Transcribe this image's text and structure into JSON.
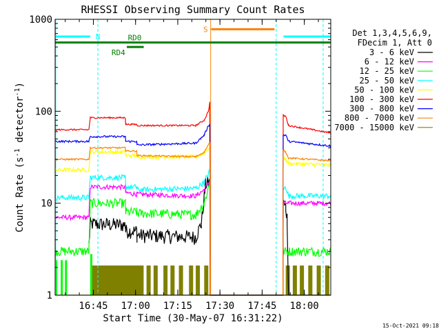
{
  "chart_data": {
    "type": "line",
    "title": "RHESSI Observing Summary Count Rates",
    "xlabel": "Start Time (30-May-07 16:31:22)",
    "ylabel_parts": {
      "pre": "Count Rate (s",
      "sup1": "-1",
      "mid": " detector",
      "sup2": "-1",
      "post": ")"
    },
    "timestamp": "15-Oct-2021 09:18",
    "x_units": "minutes since 16:31:22",
    "xlim": [
      0,
      98
    ],
    "ylim": [
      1,
      1000
    ],
    "y_scale": "log",
    "x_ticks": [
      {
        "value": 13.6,
        "label": "16:45"
      },
      {
        "value": 28.6,
        "label": "17:00"
      },
      {
        "value": 43.6,
        "label": "17:15"
      },
      {
        "value": 58.6,
        "label": "17:30"
      },
      {
        "value": 73.6,
        "label": "17:45"
      },
      {
        "value": 88.6,
        "label": "18:00"
      }
    ],
    "y_ticks": [
      {
        "value": 1,
        "label": "1"
      },
      {
        "value": 10,
        "label": "10"
      },
      {
        "value": 100,
        "label": "100"
      },
      {
        "value": 1000,
        "label": "1000"
      }
    ],
    "legend_header": [
      "Det 1,3,4,5,6,9,",
      "FDecim 1, Att 0"
    ],
    "series": [
      {
        "name": "3 - 6 keV",
        "color": "#000000",
        "noise": 0.18,
        "points": [
          [
            12,
            3.5
          ],
          [
            12.5,
            6
          ],
          [
            25,
            5.8
          ],
          [
            25.1,
            5
          ],
          [
            29,
            5
          ],
          [
            29.1,
            4.5
          ],
          [
            50,
            4.3
          ],
          [
            52,
            6
          ],
          [
            53.5,
            16
          ],
          [
            55,
            17
          ],
          [
            55.1,
            1
          ],
          [
            81,
            1
          ],
          [
            81.1,
            10
          ],
          [
            82,
            9
          ],
          [
            82.5,
            7
          ],
          [
            83,
            1
          ],
          [
            98,
            1
          ]
        ]
      },
      {
        "name": "6 - 12 keV",
        "color": "#ff00ff",
        "noise": 0.06,
        "points": [
          [
            0,
            7
          ],
          [
            12,
            7
          ],
          [
            12.5,
            15
          ],
          [
            25,
            15
          ],
          [
            25.1,
            13
          ],
          [
            29,
            12.5
          ],
          [
            29.1,
            12.5
          ],
          [
            50,
            12
          ],
          [
            53,
            14
          ],
          [
            54.8,
            17
          ],
          [
            55,
            17
          ],
          [
            55.1,
            1
          ],
          [
            81,
            1
          ],
          [
            81.1,
            10
          ],
          [
            98,
            10
          ]
        ]
      },
      {
        "name": "12 - 25 keV",
        "color": "#00ff00",
        "noise": 0.12,
        "points": [
          [
            0,
            3
          ],
          [
            12,
            3
          ],
          [
            12.5,
            10
          ],
          [
            25,
            10
          ],
          [
            25.1,
            8
          ],
          [
            29,
            8
          ],
          [
            29.1,
            7.8
          ],
          [
            50,
            7.5
          ],
          [
            53,
            10
          ],
          [
            54.8,
            16
          ],
          [
            55,
            16
          ],
          [
            55.1,
            1
          ],
          [
            81,
            1
          ],
          [
            81.1,
            3
          ],
          [
            98,
            3
          ]
        ]
      },
      {
        "name": "25 - 50 keV",
        "color": "#00ffff",
        "noise": 0.07,
        "points": [
          [
            0,
            11.5
          ],
          [
            12,
            11.5
          ],
          [
            12.5,
            19
          ],
          [
            25,
            19
          ],
          [
            25.1,
            15
          ],
          [
            29,
            15
          ],
          [
            29.1,
            14
          ],
          [
            50,
            14.5
          ],
          [
            53,
            17
          ],
          [
            54.8,
            22
          ],
          [
            55,
            22
          ],
          [
            55.1,
            1
          ],
          [
            81,
            1
          ],
          [
            81.1,
            14
          ],
          [
            82,
            15
          ],
          [
            83,
            12
          ],
          [
            98,
            12
          ]
        ]
      },
      {
        "name": "50 - 100 keV",
        "color": "#ffff00",
        "noise": 0.05,
        "points": [
          [
            0,
            23
          ],
          [
            12,
            23
          ],
          [
            12.5,
            36
          ],
          [
            25,
            36
          ],
          [
            25.1,
            33
          ],
          [
            29,
            33
          ],
          [
            29.1,
            32
          ],
          [
            50,
            32
          ],
          [
            53,
            35
          ],
          [
            54.8,
            40
          ],
          [
            55,
            40
          ],
          [
            55.1,
            1
          ],
          [
            81,
            1
          ],
          [
            81.1,
            30
          ],
          [
            82,
            30
          ],
          [
            83,
            27
          ],
          [
            98,
            26
          ]
        ]
      },
      {
        "name": "100 - 300 keV",
        "color": "#ff0000",
        "noise": 0.02,
        "points": [
          [
            0,
            63
          ],
          [
            12,
            63
          ],
          [
            12.5,
            85
          ],
          [
            25,
            85
          ],
          [
            25.1,
            72
          ],
          [
            29,
            72
          ],
          [
            29.1,
            70
          ],
          [
            50,
            70
          ],
          [
            53,
            80
          ],
          [
            54.5,
            100
          ],
          [
            55,
            125
          ],
          [
            55.1,
            1
          ],
          [
            81,
            1
          ],
          [
            81.1,
            90
          ],
          [
            82,
            88
          ],
          [
            83,
            70
          ],
          [
            98,
            58
          ]
        ]
      },
      {
        "name": "300 - 800 keV",
        "color": "#0000ff",
        "noise": 0.025,
        "points": [
          [
            0,
            47
          ],
          [
            12,
            47
          ],
          [
            12.5,
            53
          ],
          [
            25,
            53
          ],
          [
            25.1,
            47
          ],
          [
            29,
            47
          ],
          [
            29.1,
            43
          ],
          [
            50,
            45
          ],
          [
            53,
            55
          ],
          [
            54.5,
            70
          ],
          [
            55,
            72
          ],
          [
            55.1,
            1
          ],
          [
            81,
            1
          ],
          [
            81.1,
            55
          ],
          [
            82,
            55
          ],
          [
            83,
            47
          ],
          [
            98,
            42
          ]
        ]
      },
      {
        "name": "800 - 7000 keV",
        "color": "#ff8000",
        "noise": 0.02,
        "points": [
          [
            0,
            30
          ],
          [
            12,
            30
          ],
          [
            12.5,
            40
          ],
          [
            25,
            40
          ],
          [
            25.1,
            37
          ],
          [
            29,
            37
          ],
          [
            29.1,
            33
          ],
          [
            50,
            32
          ],
          [
            53,
            36
          ],
          [
            54.8,
            45
          ],
          [
            55,
            45
          ],
          [
            55.1,
            1
          ],
          [
            81,
            1
          ],
          [
            81.1,
            38
          ],
          [
            82,
            36
          ],
          [
            83,
            31
          ],
          [
            98,
            29
          ]
        ]
      },
      {
        "name": "7000 - 15000 keV",
        "color": "#808000",
        "noise": 0,
        "points": [
          [
            0,
            1
          ],
          [
            98,
            1
          ]
        ]
      }
    ],
    "green_spikes": [
      [
        0,
        2.4
      ],
      [
        2,
        2.4
      ],
      [
        3.5,
        2.4
      ],
      [
        12.5,
        2.8
      ]
    ],
    "olive_bursts": [
      [
        12.5,
        2.1
      ],
      [
        13.2,
        2.1
      ],
      [
        14.0,
        2.1
      ],
      [
        14.9,
        2.1
      ],
      [
        15.7,
        2.1
      ],
      [
        16.5,
        2.1
      ],
      [
        17.3,
        2.1
      ],
      [
        18.1,
        2.1
      ],
      [
        19.0,
        2.1
      ],
      [
        19.8,
        2.1
      ],
      [
        20.6,
        2.1
      ],
      [
        21.4,
        2.1
      ],
      [
        22.2,
        2.1
      ],
      [
        23.1,
        2.1
      ],
      [
        24,
        2.1
      ],
      [
        24.9,
        2.1
      ],
      [
        25.7,
        2.1
      ],
      [
        26.6,
        2.1
      ],
      [
        27.4,
        2.1
      ],
      [
        28.2,
        2.1
      ],
      [
        29.1,
        2.1
      ],
      [
        30.0,
        2.1
      ],
      [
        32.5,
        2.1
      ],
      [
        35,
        2.1
      ],
      [
        38.5,
        2.1
      ],
      [
        41,
        2.1
      ],
      [
        44,
        2.1
      ],
      [
        47.6,
        2.1
      ],
      [
        50,
        2.1
      ],
      [
        53,
        2.1
      ],
      [
        82,
        2.1
      ],
      [
        84.5,
        2.1
      ],
      [
        87,
        2.1
      ],
      [
        90,
        2.1
      ],
      [
        93,
        2.1
      ],
      [
        96,
        2.1
      ]
    ],
    "flags": [
      {
        "label": "N",
        "color": "#00ffff",
        "y": 650,
        "segments": [
          [
            0,
            12.5
          ],
          [
            81.2,
            98
          ]
        ]
      },
      {
        "label": "RD0",
        "color": "#008000",
        "y": 560,
        "segments": [
          [
            0,
            98
          ]
        ]
      },
      {
        "label": "RD4",
        "color": "#008000",
        "y": 500,
        "segments": [
          [
            25.5,
            31.5
          ]
        ]
      },
      {
        "label": "S",
        "color": "#ff8000",
        "y": 780,
        "segments": [
          [
            55.5,
            78
          ]
        ]
      }
    ],
    "vlines": [
      {
        "x": 0.2,
        "color": "#00ffff",
        "dash": false
      },
      {
        "x": 15.2,
        "color": "#00ffff",
        "dash": true
      },
      {
        "x": 55.3,
        "color": "#ff8000",
        "dash": false
      },
      {
        "x": 78.6,
        "color": "#00ffff",
        "dash": true
      },
      {
        "x": 95.3,
        "color": "#00ffff",
        "dash": true
      }
    ]
  }
}
